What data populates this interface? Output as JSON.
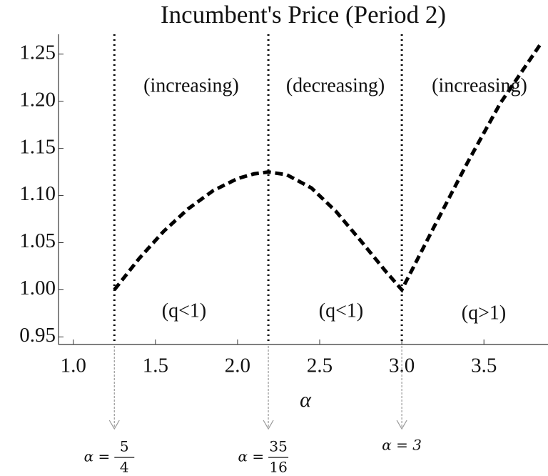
{
  "chart_data": {
    "type": "line",
    "title": "Incumbent's Price (Period 2)",
    "x_label": "α",
    "x": [
      1.25,
      1.4,
      1.55,
      1.7,
      1.85,
      2.0,
      2.1,
      2.1875,
      2.3,
      2.45,
      2.6,
      2.75,
      2.9,
      3.0,
      3.2,
      3.4,
      3.6,
      3.85
    ],
    "series": [
      {
        "color": "#000000",
        "values": [
          1.0,
          1.033,
          1.062,
          1.086,
          1.105,
          1.118,
          1.123,
          1.125,
          1.122,
          1.108,
          1.083,
          1.052,
          1.02,
          1.0,
          1.068,
          1.135,
          1.198,
          1.262
        ]
      }
    ],
    "xlim": [
      0.91,
      3.89
    ],
    "ylim": [
      0.942,
      1.271
    ],
    "xticks": [
      {
        "value": 1.0,
        "label": "1.0"
      },
      1.5,
      {
        "value": 2.0,
        "label": "2.0"
      },
      2.5,
      {
        "value": 3.0,
        "label": "3.0"
      },
      3.5
    ],
    "yticks": [
      0.95,
      {
        "value": 1.0,
        "label": "1.00"
      },
      1.05,
      {
        "value": 1.1,
        "label": "1.10"
      },
      1.15,
      {
        "value": 1.2,
        "label": "1.20"
      },
      1.25
    ],
    "markers": [
      {
        "x": 1.25,
        "lhs": "α =",
        "num": "5",
        "den": "4"
      },
      {
        "x": 2.1875,
        "lhs": "α =",
        "num": "35",
        "den": "16"
      },
      {
        "x": 3.0,
        "lhs": "α = 3"
      }
    ],
    "annotations": [
      "(increasing)",
      "(decreasing)",
      "(increasing)",
      "(q<1)",
      "(q<1)",
      "(q>1)"
    ]
  }
}
